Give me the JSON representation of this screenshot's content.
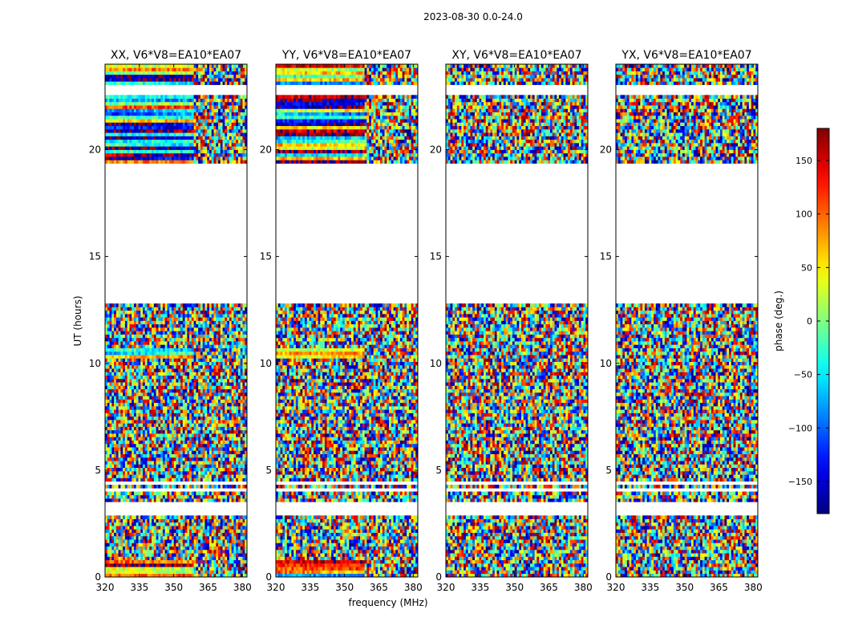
{
  "chart_data": {
    "type": "heatmap",
    "suptitle": "2023-08-30 0.0-24.0",
    "xlabel": "frequency (MHz)",
    "ylabel": "UT (hours)",
    "colorbar_label": "phase (deg.)",
    "colormap": "jet",
    "vmin": -180,
    "vmax": 180,
    "xlim": [
      320,
      382
    ],
    "ylim": [
      0,
      24
    ],
    "xticks": [
      "320",
      "335",
      "350",
      "365",
      "380"
    ],
    "yticks": [
      "0",
      "5",
      "10",
      "15",
      "20"
    ],
    "colorbar_ticks": [
      "−150",
      "−100",
      "−50",
      "0",
      "50",
      "100",
      "150"
    ],
    "colorbar_tick_values": [
      -150,
      -100,
      -50,
      0,
      50,
      100,
      150
    ],
    "data_gaps_hours": [
      [
        2.95,
        3.45
      ],
      [
        3.95,
        4.15
      ],
      [
        4.35,
        4.55
      ],
      [
        12.75,
        19.35
      ],
      [
        22.55,
        22.7
      ],
      [
        22.75,
        23.05
      ]
    ],
    "panels": [
      {
        "title": "XX, V6*V8=EA10*EA07",
        "pol": "XX"
      },
      {
        "title": "YY, V6*V8=EA10*EA07",
        "pol": "YY"
      },
      {
        "title": "XY, V6*V8=EA10*EA07",
        "pol": "XY"
      },
      {
        "title": "YX, V6*V8=EA10*EA07",
        "pol": "YX"
      }
    ]
  }
}
